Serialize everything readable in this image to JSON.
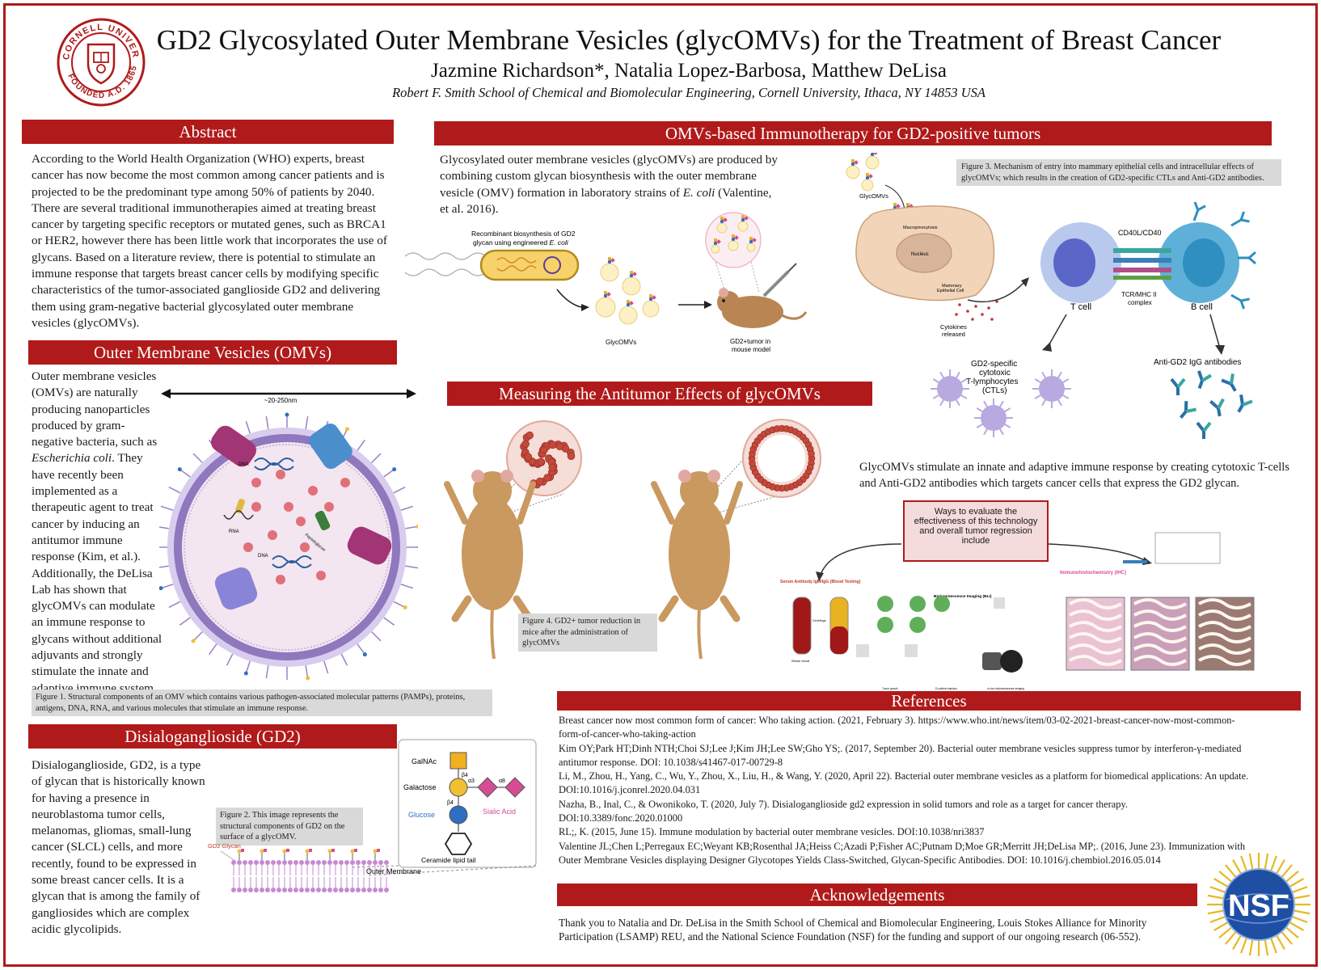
{
  "header": {
    "title": "GD2 Glycosylated Outer Membrane Vesicles (glycOMVs) for the Treatment of Breast Cancer",
    "authors": "Jazmine Richardson*, Natalia Lopez-Barbosa, Matthew DeLisa",
    "affiliation": "Robert F. Smith School of Chemical and Biomolecular Engineering, Cornell University, Ithaca, NY 14853 USA",
    "seal_text": "CORNELL UNIVERSITY · FOUNDED A.D. 1865"
  },
  "abstract": {
    "heading": "Abstract",
    "text": "According to the World Health Organization (WHO) experts, breast cancer has now become the most common among cancer patients and is projected to be the predominant type among 50% of patients by 2040. There are several traditional immunotherapies aimed at treating breast cancer by targeting specific receptors or mutated genes, such as BRCA1 or HER2, however there has been little work that incorporates the use of glycans. Based on a literature review, there is potential to stimulate an immune response that targets breast cancer cells by modifying specific characteristics of the tumor-associated ganglioside GD2 and delivering them using gram-negative bacterial glycosylated outer membrane vesicles (glycOMVs)."
  },
  "omv": {
    "heading": "Outer Membrane Vesicles (OMVs)",
    "text_pre": "Outer membrane vesicles (OMVs) are naturally producing nanoparticles produced by gram-negative bacteria, such as ",
    "text_italic": "Escherichia coli",
    "text_post": ". They have recently been implemented as a therapeutic agent to treat cancer by inducing an antitumor immune response (Kim, et al.). Additionally, the DeLisa Lab has shown that glycOMVs can modulate an immune response to glycans without additional adjuvants and strongly stimulate the innate and adaptive immune system.",
    "size_label": "~20-250nm",
    "dna_label": "DNA",
    "rna_label": "RNA",
    "peptidoglycan_label": "Peptidoglycan",
    "figure_caption": "Figure 1. Structural components of an OMV which contains various pathogen-associated molecular patterns (PAMPs), proteins, antigens, DNA, RNA, and various molecules that stimulate an immune response."
  },
  "gd2": {
    "heading": "Disialoganglioside (GD2)",
    "text": "Disialoganglioside, GD2, is a type of glycan that is historically known for having a presence in neuroblastoma tumor cells, melanomas, gliomas, small-lung cancer (SLCL) cells, and more recently, found to be expressed in some breast cancer cells. It is a glycan that is among the family of gangliosides which are complex acidic glycolipids.",
    "figure_caption": "Figure 2. This image represents the structural components of GD2 on the surface of a glycOMV.",
    "labels": {
      "galnac": "GalNAc",
      "galactose": "Galactose",
      "glucose": "Glucose",
      "sialic": "Sialic Acid",
      "ceramide": "Ceramide lipid tail",
      "gd2_glycan": "GD2 Glycan",
      "outer_membrane": "Outer Membrane",
      "b4a": "β4",
      "b4b": "β4",
      "a3": "α3",
      "a8": "α8"
    }
  },
  "immuno": {
    "heading": "OMVs-based Immunotherapy for GD2-positive tumors",
    "text_pre": "Glycosylated outer membrane vesicles (glycOMVs) are produced by  combining custom glycan biosynthesis with the outer membrane vesicle (OMV) formation in laboratory strains of ",
    "text_italic": "E. coli",
    "text_post": " (Valentine, et al. 2016).",
    "labels": {
      "recombinant_pre": "Recombinant biosynthesis of GD2",
      "recombinant_post": "glycan using engineered ",
      "recombinant_italic": "E. coli",
      "glycomvs": "GlycOMVs",
      "mouse": "GD2+tumor in",
      "mouse2": "mouse model",
      "glycomvs2": "GlycOMVs",
      "macropinocytosis": "Macropinocytosis",
      "nucleus": "Nucleus",
      "mammary": "Mammary",
      "epithelial": "Epithelial Cell",
      "cytokines": "Cytokines",
      "released": "released",
      "cd40": "CD40L/CD40",
      "tcr": "TCR/MHC II",
      "complex": "complex",
      "tcell": "T cell",
      "bcell": "B cell",
      "ctl1": "GD2-specific",
      "ctl2": "cytotoxic",
      "ctl3": "T-lymphocytes",
      "ctl4": "(CTLs)",
      "antibodies": "Anti-GD2 IgG antibodies"
    },
    "figure_caption": "Figure 3.  Mechanism of entry into mammary epithelial cells and intracellular effects of glycOMVs; which results in the creation of  GD2-specific CTLs and Anti-GD2 antibodies.",
    "summary": "GlycOMVs stimulate an innate and adaptive immune response by creating cytotoxic T-cells and Anti-GD2 antibodies which targets cancer cells that express the GD2 glycan."
  },
  "measure": {
    "heading": "Measuring the Antitumor Effects of glycOMVs",
    "figure_caption": "Figure 4. GD2+ tumor reduction in mice after the administration of glycOMVs",
    "ways_box": "Ways to evaluate the effectiveness of this technology and overall tumor regression include",
    "serum_label": "Serum Antibody IgM/IgG (Blood Testing)",
    "bli_label": "Bioluminescence Imaging (BLI)",
    "ihc_label": "Immunohistochemistry (IHC)",
    "centrifuge": "Centrifuge",
    "whole_blood": "Whole blood",
    "tumor_growth": "Tumor growth",
    "luciferin": "D-luciferin injection",
    "in_vivo": "In vivo bioluminescence imaging"
  },
  "references": {
    "heading": "References",
    "items": [
      "Breast cancer now most common form of cancer: Who taking action. (2021, February 3). https://www.who.int/news/item/03-02-2021-breast-cancer-now-most-common-form-of-cancer-who-taking-action",
      "Kim OY;Park HT;Dinh NTH;Choi SJ;Lee J;Kim JH;Lee SW;Gho YS;. (2017, September 20). Bacterial outer membrane vesicles suppress tumor by interferon-γ-mediated antitumor response. DOI: 10.1038/s41467-017-00729-8",
      "Li, M., Zhou, H., Yang, C., Wu, Y., Zhou, X., Liu, H., & Wang, Y. (2020, April 22). Bacterial outer membrane vesicles as a platform for biomedical applications: An update. DOI:10.1016/j.jconrel.2020.04.031",
      "Nazha, B., Inal, C., & Owonikoko, T. (2020, July 7). Disialoganglioside gd2 expression in solid tumors and role as a target for cancer therapy. DOI:10.3389/fonc.2020.01000",
      "RL;, K. (2015, June 15). Immune modulation by bacterial outer membrane vesicles. DOI:10.1038/nri3837",
      "Valentine JL;Chen L;Perregaux EC;Weyant KB;Rosenthal JA;Heiss C;Azadi P;Fisher AC;Putnam D;Moe GR;Merritt JH;DeLisa MP;. (2016, June 23). Immunization with Outer Membrane Vesicles displaying Designer Glycotopes Yields Class-Switched, Glycan-Specific Antibodies. DOI: 10.1016/j.chembiol.2016.05.014"
    ]
  },
  "ack": {
    "heading": "Acknowledgements",
    "text": "Thank you to Natalia and Dr. DeLisa in the Smith School of Chemical and Biomolecular Engineering,  Louis Stokes Alliance for Minority Participation (LSAMP) REU,  and the National Science Foundation (NSF) for the funding and support of our ongoing research (06-552).",
    "nsf_logo": "NSF"
  },
  "colors": {
    "banner": "#b01a1a",
    "caption_bg": "#d9d9d9",
    "membrane": "#9a82c4",
    "ves_fill": "#f7e4ee",
    "tumor": "#c4493a",
    "mouse": "#c9995f",
    "glucose": "#2f6fc0",
    "galactose": "#f0c030",
    "galnac": "#f0b020",
    "sialic": "#d64d92"
  }
}
